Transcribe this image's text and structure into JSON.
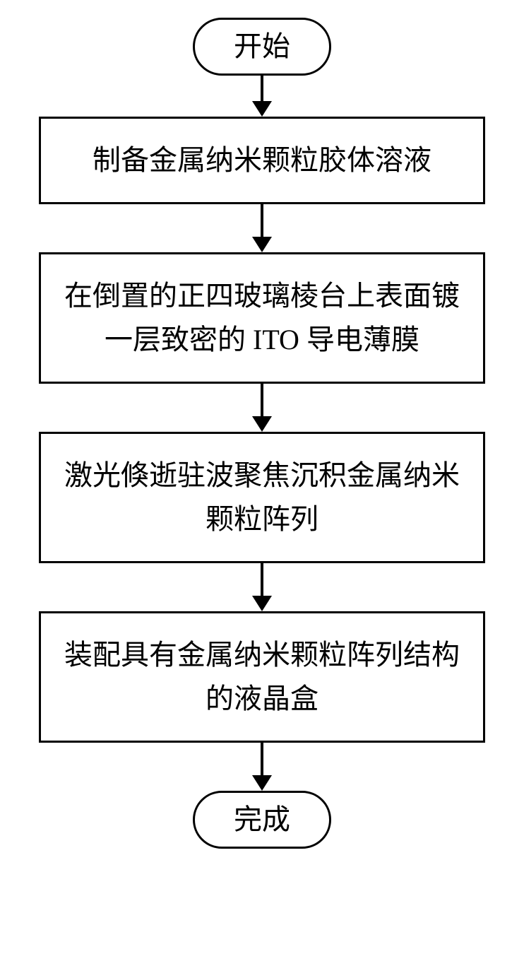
{
  "flowchart": {
    "type": "flowchart",
    "background_color": "#ffffff",
    "border_color": "#000000",
    "border_width": 3,
    "font_family": "SimSun",
    "font_size": 40,
    "text_color": "#000000",
    "terminal_border_radius": 50,
    "process_width": 632,
    "arrow_color": "#000000",
    "arrow_line_width": 4,
    "arrow_head_width": 28,
    "arrow_head_height": 22,
    "nodes": [
      {
        "id": "start",
        "type": "terminal",
        "label": "开始"
      },
      {
        "id": "step1",
        "type": "process",
        "label": "制备金属纳米颗粒胶体溶液"
      },
      {
        "id": "step2",
        "type": "process",
        "label": "在倒置的正四玻璃棱台上表面镀一层致密的 ITO 导电薄膜"
      },
      {
        "id": "step3",
        "type": "process",
        "label": "激光倏逝驻波聚焦沉积金属纳米颗粒阵列"
      },
      {
        "id": "step4",
        "type": "process",
        "label": "装配具有金属纳米颗粒阵列结构的液晶盒"
      },
      {
        "id": "end",
        "type": "terminal",
        "label": "完成"
      }
    ],
    "edges": [
      {
        "from": "start",
        "to": "step1"
      },
      {
        "from": "step1",
        "to": "step2"
      },
      {
        "from": "step2",
        "to": "step3"
      },
      {
        "from": "step3",
        "to": "step4"
      },
      {
        "from": "step4",
        "to": "end"
      }
    ]
  }
}
